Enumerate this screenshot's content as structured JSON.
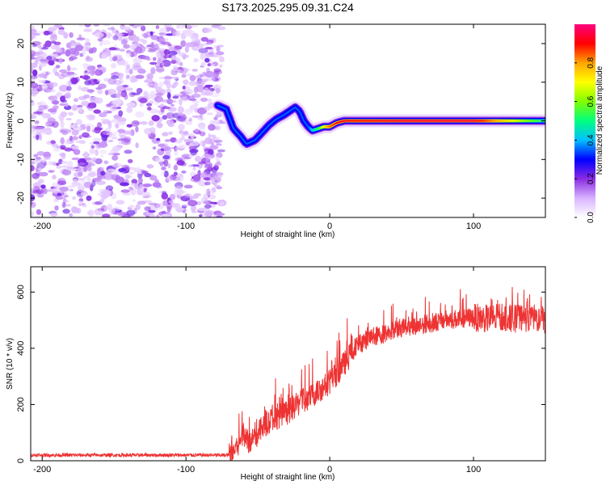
{
  "chart_data": [
    {
      "type": "heatmap",
      "title": "S173.2025.295.09.31.C24",
      "xlabel": "Height of straight line (km)",
      "ylabel": "Frequency (Hz)",
      "xlim": [
        -208,
        150
      ],
      "ylim": [
        -25,
        25
      ],
      "xticks": [
        -200,
        -100,
        0,
        100
      ],
      "yticks": [
        -20,
        -10,
        0,
        10,
        20
      ],
      "colorbar": {
        "label": "Normalized spectral amplitude",
        "range": [
          0,
          1
        ],
        "ticks": [
          "0.0",
          "0.2",
          "0.4",
          "0.6",
          "0.8"
        ],
        "colors": [
          "#ffffff",
          "#d9b3ff",
          "#8a2be2",
          "#0000ff",
          "#00bfff",
          "#00ff80",
          "#80ff00",
          "#ffff00",
          "#ffa500",
          "#ff0000",
          "#ff0080"
        ]
      },
      "noise_region": {
        "x": [
          -208,
          -75
        ],
        "amplitude": 0.1
      },
      "ridge": {
        "x": [
          -78,
          -72,
          -67,
          -62,
          -58,
          -52,
          -47,
          -42,
          -37,
          -32,
          -28,
          -24,
          -21,
          -18,
          -15,
          -12,
          -8,
          -4,
          0,
          5,
          10,
          15,
          50,
          100,
          150
        ],
        "y": [
          4,
          3,
          -2,
          -4,
          -6,
          -5,
          -3,
          -1,
          0.5,
          1.5,
          2.5,
          3.5,
          2.5,
          0,
          -1.5,
          -2.5,
          -2,
          -1.5,
          -1.5,
          -0.5,
          0,
          0,
          0,
          0,
          0
        ],
        "amplitude": [
          0.35,
          0.35,
          0.35,
          0.35,
          0.35,
          0.35,
          0.35,
          0.35,
          0.35,
          0.35,
          0.35,
          0.35,
          0.35,
          0.35,
          0.35,
          0.45,
          0.55,
          0.75,
          0.85,
          0.9,
          0.95,
          0.9,
          0.95,
          0.95,
          0.5
        ]
      }
    },
    {
      "type": "line",
      "title": "",
      "xlabel": "Height of straight line (km)",
      "ylabel": "SNR (10 * v/v)",
      "xlim": [
        -208,
        150
      ],
      "ylim": [
        0,
        690
      ],
      "xticks": [
        -200,
        -100,
        0,
        100
      ],
      "yticks": [
        0,
        200,
        400,
        600
      ],
      "color": "#ee3333",
      "series": [
        {
          "name": "SNR",
          "x": [
            -208,
            -200,
            -180,
            -160,
            -140,
            -120,
            -100,
            -80,
            -70,
            -65,
            -60,
            -55,
            -50,
            -45,
            -40,
            -35,
            -30,
            -25,
            -20,
            -15,
            -10,
            -5,
            0,
            5,
            10,
            15,
            20,
            25,
            30,
            40,
            50,
            60,
            70,
            80,
            90,
            100,
            110,
            120,
            130,
            140,
            150
          ],
          "values": [
            20,
            20,
            20,
            20,
            20,
            20,
            20,
            20,
            20,
            45,
            100,
            60,
            95,
            130,
            150,
            160,
            170,
            190,
            210,
            220,
            240,
            260,
            280,
            310,
            345,
            380,
            415,
            430,
            440,
            455,
            475,
            480,
            490,
            500,
            505,
            510,
            505,
            510,
            505,
            510,
            500
          ]
        }
      ]
    }
  ]
}
